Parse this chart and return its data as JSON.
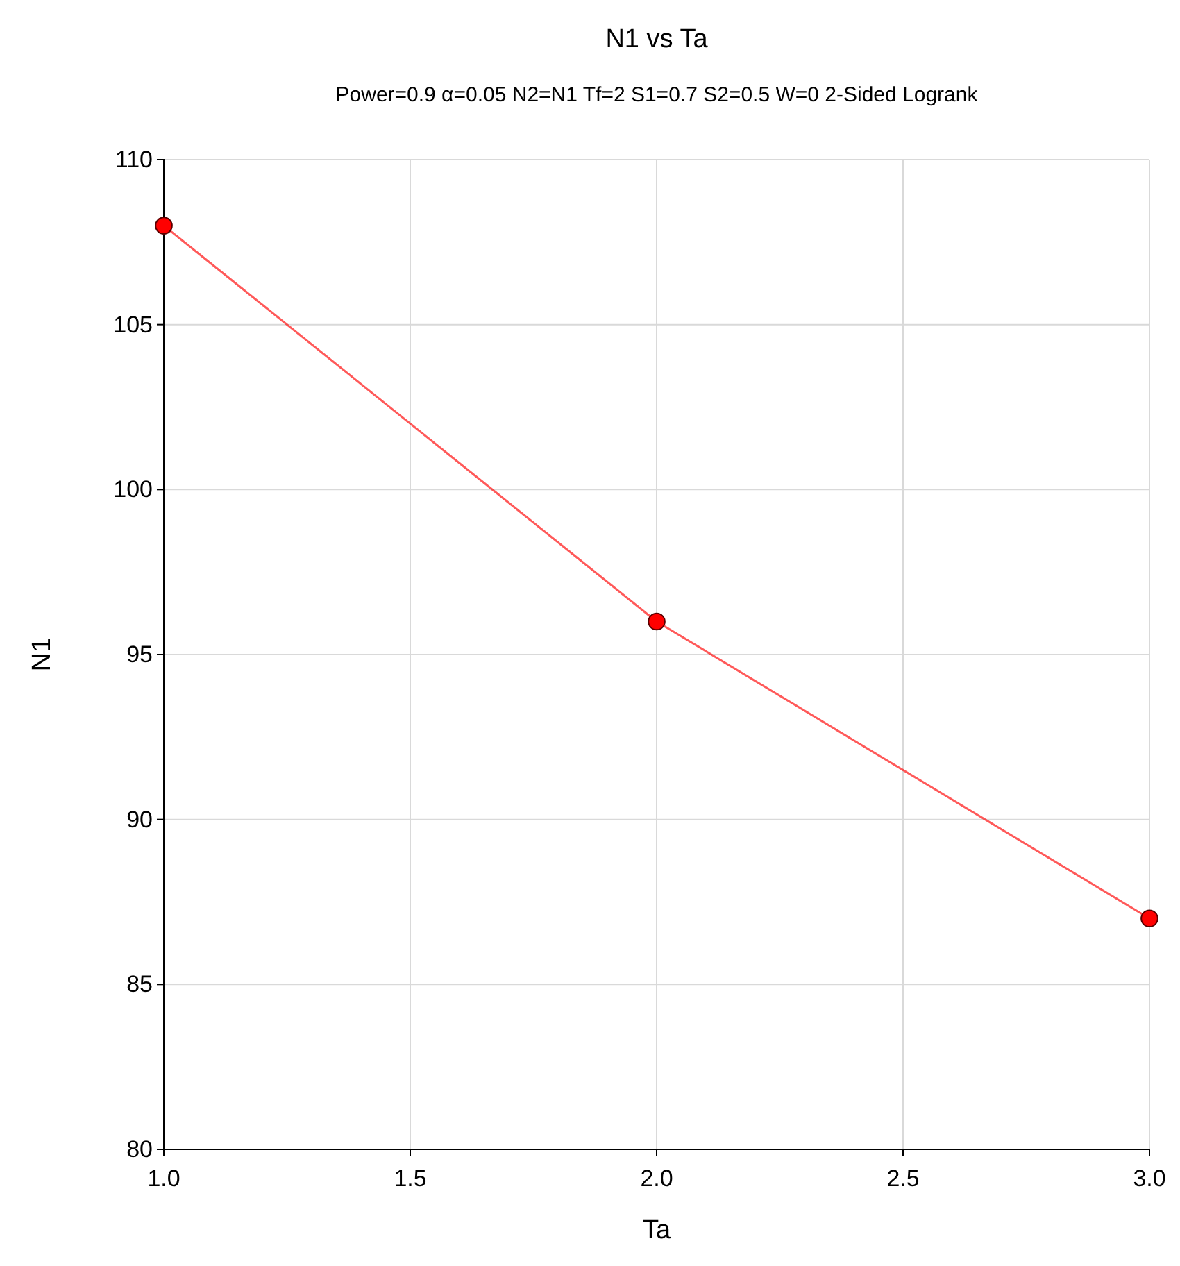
{
  "chart_data": {
    "type": "line",
    "title": "N1 vs Ta",
    "subtitle": "Power=0.9 α=0.05 N2=N1 Tf=2 S1=0.7 S2=0.5 W=0 2-Sided Logrank",
    "xlabel": "Ta",
    "ylabel": "N1",
    "x": [
      1,
      2,
      3
    ],
    "series": [
      {
        "color": "#ff0000",
        "values": [
          108,
          96,
          87
        ]
      }
    ],
    "xlim": [
      1,
      3
    ],
    "xticks": [
      {
        "value": 1,
        "label": "1.0"
      },
      {
        "value": 1.5,
        "label": "1.5"
      },
      {
        "value": 2,
        "label": "2.0"
      },
      {
        "value": 2.5,
        "label": "2.5"
      },
      {
        "value": 3,
        "label": "3.0"
      }
    ],
    "ylim": [
      80,
      110
    ],
    "yticks": [
      80,
      85,
      90,
      95,
      100,
      105,
      110
    ],
    "grid": true,
    "marker": "circle",
    "line_style": "solid"
  }
}
